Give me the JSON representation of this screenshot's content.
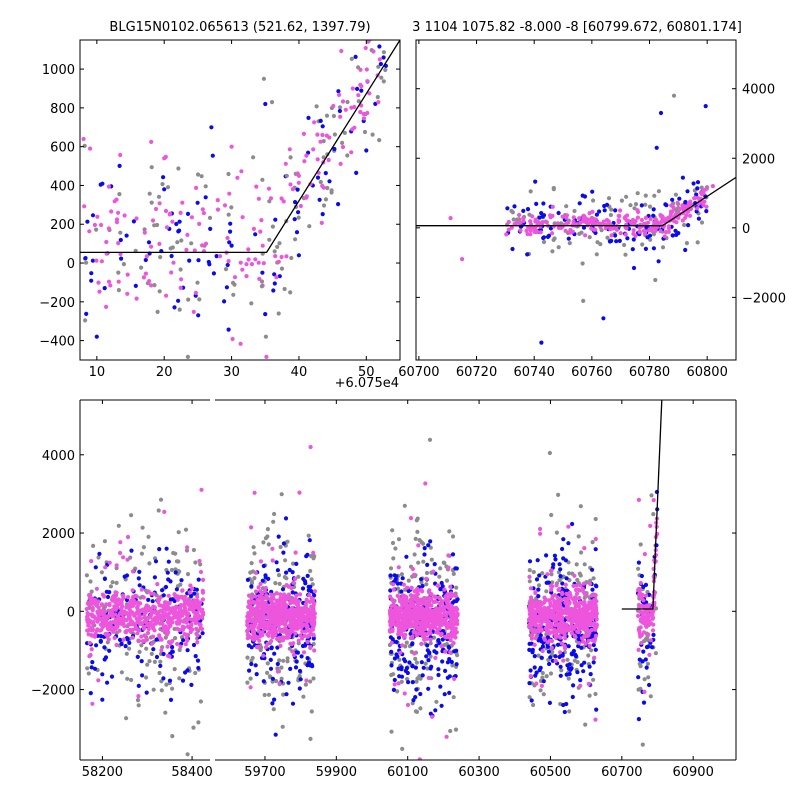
{
  "colors": {
    "gray": "#8c8c8c",
    "blue": "#0a0aee",
    "magenta": "#ee55dd",
    "line": "#000000"
  },
  "chart_data": [
    {
      "id": "top_left",
      "type": "scatter",
      "title": "BLG15N0102.065613 (521.62, 1397.79)",
      "xlim": [
        7.5,
        55
      ],
      "ylim": [
        -500,
        1150
      ],
      "xticks": [
        10,
        20,
        30,
        40,
        50
      ],
      "yticks": [
        -400,
        -200,
        0,
        200,
        400,
        600,
        800,
        1000
      ],
      "tick_labels_x": [
        "10",
        "20",
        "30",
        "40",
        "50"
      ],
      "tick_labels_y": [
        "−400",
        "−200",
        "0",
        "200",
        "400",
        "600",
        "800",
        "1000"
      ],
      "model_line": {
        "x": [
          7.5,
          35.2,
          55
        ],
        "y": [
          55,
          55,
          1150
        ]
      },
      "series": [
        {
          "name": "gray",
          "color": "gray",
          "x": [
            34.5,
            35.1,
            36.0,
            36.4,
            37.0,
            34.8,
            38.2,
            35.6
          ],
          "y": [
            -120,
            -380,
            830,
            60,
            -260,
            950,
            450,
            120
          ]
        },
        {
          "name": "blue",
          "color": "blue",
          "x": [
            10.0,
            20.0,
            30.0,
            40.0,
            50.0,
            35.0,
            27.0
          ],
          "y": [
            -380,
            380,
            90,
            40,
            580,
            820,
            700
          ]
        },
        {
          "name": "magenta",
          "color": "magenta",
          "x": [
            9.0,
            20.0,
            30.0,
            40.0,
            48.0,
            52.0
          ],
          "y": [
            590,
            540,
            600,
            450,
            900,
            1050
          ]
        }
      ],
      "clusters": [
        {
          "series": "gray",
          "x_range": [
            8,
            53
          ],
          "y_mean": 100,
          "y_sd": 240,
          "count": 110
        },
        {
          "series": "blue",
          "x_range": [
            8,
            53
          ],
          "y_mean": 80,
          "y_sd": 220,
          "count": 95
        },
        {
          "series": "magenta",
          "x_range": [
            8,
            53
          ],
          "y_mean": 100,
          "y_sd": 200,
          "count": 170
        }
      ]
    },
    {
      "id": "top_right",
      "type": "scatter",
      "title": "3 1104 1075.82 -8.000 -8 [60799.672, 60801.174]",
      "xlim": [
        60699,
        60810
      ],
      "ylim": [
        -3800,
        5400
      ],
      "xticks": [
        60700,
        60720,
        60740,
        60760,
        60780,
        60800
      ],
      "yticks": [
        -2000,
        0,
        2000,
        4000
      ],
      "tick_labels_x": [
        "60700",
        "60720",
        "60740",
        "60760",
        "60780",
        "60800"
      ],
      "tick_labels_y": [
        "−2000",
        "0",
        "2000",
        "4000"
      ],
      "offset_label": "+6.075e4",
      "model_line": {
        "x": [
          60699,
          60784.5,
          60810
        ],
        "y": [
          60,
          60,
          1450
        ]
      },
      "series": [
        {
          "name": "gray",
          "color": "gray",
          "x": [
            60788.5,
            60757.0,
            60782.0
          ],
          "y": [
            3800,
            -2100,
            -1500
          ]
        },
        {
          "name": "blue",
          "color": "blue",
          "x": [
            60784.0,
            60799.5,
            60782.5,
            60742.5,
            60764.0
          ],
          "y": [
            3300,
            3500,
            2300,
            -3300,
            -2600
          ]
        },
        {
          "name": "magenta",
          "color": "magenta",
          "x": [
            60711.0,
            60715.0,
            60802.0
          ],
          "y": [
            280,
            -900,
            1200
          ]
        }
      ],
      "clusters": [
        {
          "series": "gray",
          "x_range": [
            60730,
            60800
          ],
          "y_mean": 0,
          "y_sd": 450,
          "count": 110
        },
        {
          "series": "blue",
          "x_range": [
            60730,
            60800
          ],
          "y_mean": -20,
          "y_sd": 420,
          "count": 130
        },
        {
          "series": "magenta",
          "x_range": [
            60730,
            60800
          ],
          "y_mean": 40,
          "y_sd": 160,
          "count": 260
        }
      ]
    },
    {
      "id": "bottom",
      "type": "scatter",
      "title": "",
      "ylim": [
        -3800,
        5400
      ],
      "yticks": [
        -2000,
        0,
        2000,
        4000
      ],
      "tick_labels_y": [
        "−2000",
        "0",
        "2000",
        "4000"
      ],
      "panels": [
        {
          "xlim": [
            58150,
            58440
          ],
          "xticks": [
            58200,
            58400
          ],
          "tick_labels_x": [
            "58200",
            "58400"
          ]
        },
        {
          "xlim": [
            59560,
            61020
          ],
          "xticks": [
            59700,
            59900,
            60100,
            60300,
            60500,
            60700,
            60900
          ],
          "tick_labels_x": [
            "59700",
            "59900",
            "60100",
            "60300",
            "60500",
            "60700",
            "60900"
          ]
        }
      ],
      "model_line": {
        "x": [
          60700,
          60787,
          60812
        ],
        "y": [
          60,
          60,
          5400
        ]
      },
      "seasons": [
        {
          "range": [
            58165,
            58425
          ],
          "gray": 160,
          "blue": 160,
          "magenta": 560
        },
        {
          "range": [
            59650,
            59840
          ],
          "gray": 170,
          "blue": 200,
          "magenta": 560
        },
        {
          "range": [
            60050,
            60240
          ],
          "gray": 170,
          "blue": 220,
          "magenta": 560
        },
        {
          "range": [
            60440,
            60630
          ],
          "gray": 150,
          "blue": 260,
          "magenta": 520
        },
        {
          "range": [
            60745,
            60800
          ],
          "gray": 40,
          "blue": 40,
          "magenta": 110
        }
      ]
    }
  ]
}
